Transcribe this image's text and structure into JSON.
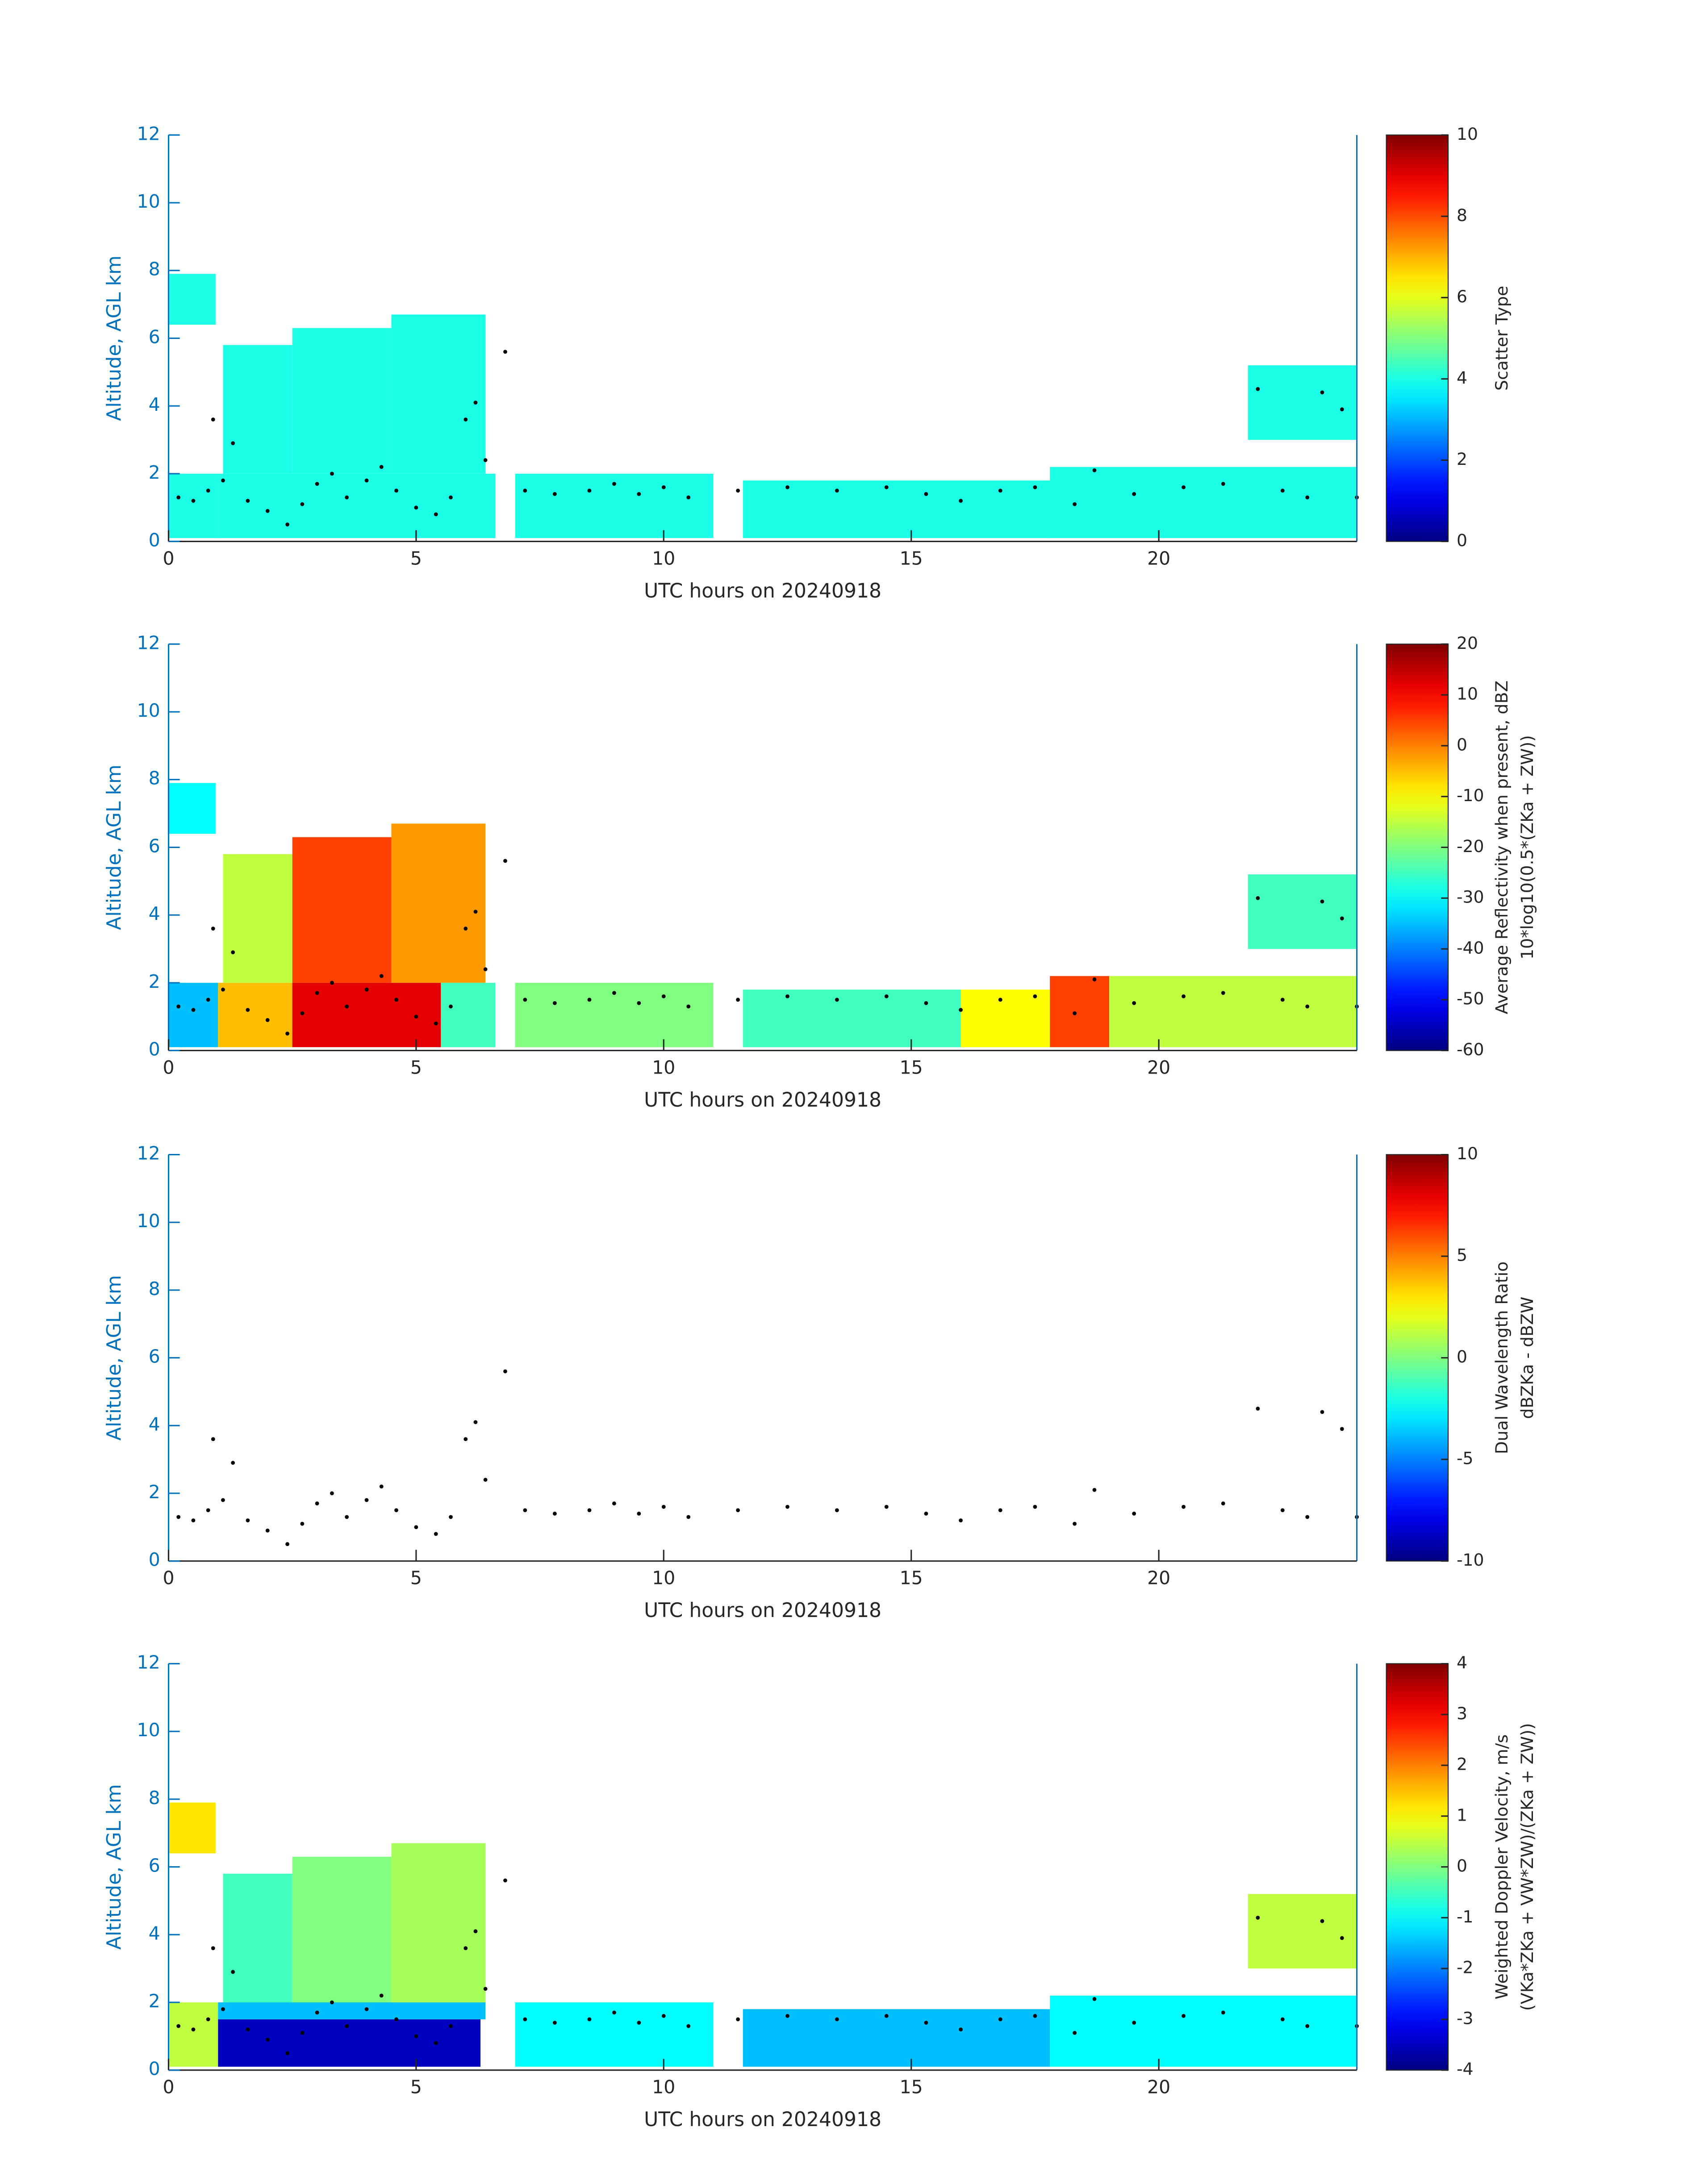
{
  "chart_data": [
    {
      "type": "time-height",
      "xlabel": "UTC hours on 20240918",
      "ylabel": "Altitude, AGL km",
      "xlim": [
        0,
        24
      ],
      "xticks": [
        0,
        5,
        10,
        15,
        20
      ],
      "ylim": [
        0,
        12
      ],
      "yticks": [
        0,
        2,
        4,
        6,
        8,
        10,
        12
      ],
      "axis_color": "#0072bd",
      "colormap": "jet",
      "colorbar": {
        "label": [
          "Scatter Type"
        ],
        "lim": [
          0,
          10
        ],
        "ticks": [
          0,
          2,
          4,
          6,
          8,
          10
        ]
      },
      "cells": [
        {
          "x": [
            0,
            1
          ],
          "y": [
            0.1,
            2.0
          ],
          "value": 4
        },
        {
          "x": [
            0,
            0.95
          ],
          "y": [
            6.4,
            7.9
          ],
          "value": 4
        },
        {
          "x": [
            1,
            6.6
          ],
          "y": [
            0.1,
            2.0
          ],
          "value": 4
        },
        {
          "x": [
            1.1,
            2.5
          ],
          "y": [
            2.0,
            5.8
          ],
          "value": 4
        },
        {
          "x": [
            2.5,
            4.5
          ],
          "y": [
            2.0,
            6.3
          ],
          "value": 4
        },
        {
          "x": [
            4.5,
            6.4
          ],
          "y": [
            2.0,
            6.7
          ],
          "value": 4
        },
        {
          "x": [
            7,
            11
          ],
          "y": [
            0.1,
            2.0
          ],
          "value": 4
        },
        {
          "x": [
            11.6,
            17.8
          ],
          "y": [
            0.1,
            1.8
          ],
          "value": 4
        },
        {
          "x": [
            17.8,
            24
          ],
          "y": [
            0.1,
            2.2
          ],
          "value": 4
        },
        {
          "x": [
            21.8,
            24
          ],
          "y": [
            3.0,
            5.2
          ],
          "value": 4
        }
      ],
      "points": {
        "color": "#000000",
        "x": [
          0.2,
          0.5,
          0.8,
          0.9,
          1.1,
          1.3,
          1.6,
          2.0,
          2.4,
          2.7,
          3.0,
          3.3,
          3.6,
          4.0,
          4.3,
          4.6,
          5.0,
          5.4,
          5.7,
          6.0,
          6.2,
          6.4,
          6.8,
          7.2,
          7.8,
          8.5,
          9.0,
          9.5,
          10.0,
          10.5,
          11.5,
          12.5,
          13.5,
          14.5,
          15.3,
          16.0,
          16.8,
          17.5,
          18.3,
          18.7,
          19.5,
          20.5,
          21.3,
          22.0,
          22.5,
          23.0,
          23.3,
          23.7,
          24.0
        ],
        "y": [
          1.3,
          1.2,
          1.5,
          3.6,
          1.8,
          2.9,
          1.2,
          0.9,
          0.5,
          1.1,
          1.7,
          2.0,
          1.3,
          1.8,
          2.2,
          1.5,
          1.0,
          0.8,
          1.3,
          3.6,
          4.1,
          2.4,
          5.6,
          1.5,
          1.4,
          1.5,
          1.7,
          1.4,
          1.6,
          1.3,
          1.5,
          1.6,
          1.5,
          1.6,
          1.4,
          1.2,
          1.5,
          1.6,
          1.1,
          2.1,
          1.4,
          1.6,
          1.7,
          4.5,
          1.5,
          1.3,
          4.4,
          3.9,
          1.3
        ]
      }
    },
    {
      "type": "time-height",
      "xlabel": "UTC hours on 20240918",
      "ylabel": "Altitude, AGL km",
      "xlim": [
        0,
        24
      ],
      "xticks": [
        0,
        5,
        10,
        15,
        20
      ],
      "ylim": [
        0,
        12
      ],
      "yticks": [
        0,
        2,
        4,
        6,
        8,
        10,
        12
      ],
      "axis_color": "#0072bd",
      "colormap": "jet",
      "colorbar": {
        "label": [
          "Average Reflectivity when present, dBZ",
          "10*log10(0.5*(ZKa + ZW))"
        ],
        "lim": [
          -60,
          20
        ],
        "ticks": [
          -60,
          -50,
          -40,
          -30,
          -20,
          -10,
          0,
          10,
          20
        ]
      },
      "cells": [
        {
          "x": [
            0,
            1
          ],
          "y": [
            0.1,
            2.0
          ],
          "value": -35
        },
        {
          "x": [
            0,
            0.95
          ],
          "y": [
            6.4,
            7.9
          ],
          "value": -30
        },
        {
          "x": [
            1,
            2.5
          ],
          "y": [
            0.1,
            2.0
          ],
          "value": -5
        },
        {
          "x": [
            1.1,
            2.5
          ],
          "y": [
            2.0,
            5.8
          ],
          "value": -15
        },
        {
          "x": [
            2.5,
            5.5
          ],
          "y": [
            0.1,
            2.0
          ],
          "value": 12
        },
        {
          "x": [
            2.5,
            4.5
          ],
          "y": [
            2.0,
            6.3
          ],
          "value": 5
        },
        {
          "x": [
            4.5,
            6.4
          ],
          "y": [
            2.0,
            6.7
          ],
          "value": -2
        },
        {
          "x": [
            5.5,
            6.6
          ],
          "y": [
            0.1,
            2.0
          ],
          "value": -25
        },
        {
          "x": [
            7,
            11
          ],
          "y": [
            0.1,
            2.0
          ],
          "value": -20
        },
        {
          "x": [
            11.6,
            16
          ],
          "y": [
            0.1,
            1.8
          ],
          "value": -25
        },
        {
          "x": [
            16,
            17.8
          ],
          "y": [
            0.1,
            1.8
          ],
          "value": -10
        },
        {
          "x": [
            17.8,
            19
          ],
          "y": [
            0.1,
            2.2
          ],
          "value": 5
        },
        {
          "x": [
            19,
            24
          ],
          "y": [
            0.1,
            2.2
          ],
          "value": -15
        },
        {
          "x": [
            21.8,
            24
          ],
          "y": [
            3.0,
            5.2
          ],
          "value": -25
        }
      ],
      "points": {
        "color": "#000000",
        "x": [
          0.2,
          0.5,
          0.8,
          0.9,
          1.1,
          1.3,
          1.6,
          2.0,
          2.4,
          2.7,
          3.0,
          3.3,
          3.6,
          4.0,
          4.3,
          4.6,
          5.0,
          5.4,
          5.7,
          6.0,
          6.2,
          6.4,
          6.8,
          7.2,
          7.8,
          8.5,
          9.0,
          9.5,
          10.0,
          10.5,
          11.5,
          12.5,
          13.5,
          14.5,
          15.3,
          16.0,
          16.8,
          17.5,
          18.3,
          18.7,
          19.5,
          20.5,
          21.3,
          22.0,
          22.5,
          23.0,
          23.3,
          23.7,
          24.0
        ],
        "y": [
          1.3,
          1.2,
          1.5,
          3.6,
          1.8,
          2.9,
          1.2,
          0.9,
          0.5,
          1.1,
          1.7,
          2.0,
          1.3,
          1.8,
          2.2,
          1.5,
          1.0,
          0.8,
          1.3,
          3.6,
          4.1,
          2.4,
          5.6,
          1.5,
          1.4,
          1.5,
          1.7,
          1.4,
          1.6,
          1.3,
          1.5,
          1.6,
          1.5,
          1.6,
          1.4,
          1.2,
          1.5,
          1.6,
          1.1,
          2.1,
          1.4,
          1.6,
          1.7,
          4.5,
          1.5,
          1.3,
          4.4,
          3.9,
          1.3
        ]
      }
    },
    {
      "type": "time-height",
      "xlabel": "UTC hours on 20240918",
      "ylabel": "Altitude, AGL km",
      "xlim": [
        0,
        24
      ],
      "xticks": [
        0,
        5,
        10,
        15,
        20
      ],
      "ylim": [
        0,
        12
      ],
      "yticks": [
        0,
        2,
        4,
        6,
        8,
        10,
        12
      ],
      "axis_color": "#0072bd",
      "colormap": "jet",
      "colorbar": {
        "label": [
          "Dual Wavelength Ratio",
          "dBZKa - dBZW"
        ],
        "lim": [
          -10,
          10
        ],
        "ticks": [
          -10,
          -5,
          0,
          5,
          10
        ]
      },
      "points": {
        "color": "#000000",
        "x": [
          0.2,
          0.5,
          0.8,
          0.9,
          1.1,
          1.3,
          1.6,
          2.0,
          2.4,
          2.7,
          3.0,
          3.3,
          3.6,
          4.0,
          4.3,
          4.6,
          5.0,
          5.4,
          5.7,
          6.0,
          6.2,
          6.4,
          6.8,
          7.2,
          7.8,
          8.5,
          9.0,
          9.5,
          10.0,
          10.5,
          11.5,
          12.5,
          13.5,
          14.5,
          15.3,
          16.0,
          16.8,
          17.5,
          18.3,
          18.7,
          19.5,
          20.5,
          21.3,
          22.0,
          22.5,
          23.0,
          23.3,
          23.7,
          24.0
        ],
        "y": [
          1.3,
          1.2,
          1.5,
          3.6,
          1.8,
          2.9,
          1.2,
          0.9,
          0.5,
          1.1,
          1.7,
          2.0,
          1.3,
          1.8,
          2.2,
          1.5,
          1.0,
          0.8,
          1.3,
          3.6,
          4.1,
          2.4,
          5.6,
          1.5,
          1.4,
          1.5,
          1.7,
          1.4,
          1.6,
          1.3,
          1.5,
          1.6,
          1.5,
          1.6,
          1.4,
          1.2,
          1.5,
          1.6,
          1.1,
          2.1,
          1.4,
          1.6,
          1.7,
          4.5,
          1.5,
          1.3,
          4.4,
          3.9,
          1.3
        ]
      }
    },
    {
      "type": "time-height",
      "xlabel": "UTC hours on 20240918",
      "ylabel": "Altitude, AGL km",
      "xlim": [
        0,
        24
      ],
      "xticks": [
        0,
        5,
        10,
        15,
        20
      ],
      "ylim": [
        0,
        12
      ],
      "yticks": [
        0,
        2,
        4,
        6,
        8,
        10,
        12
      ],
      "axis_color": "#0072bd",
      "colormap": "jet",
      "colorbar": {
        "label": [
          "Weighted Doppler Velocity, m/s",
          "(VKa*ZKa + VW*ZW)/(ZKa + ZW))"
        ],
        "lim": [
          -4,
          4
        ],
        "ticks": [
          -4,
          -3,
          -2,
          -1,
          0,
          1,
          2,
          3,
          4
        ]
      },
      "cells": [
        {
          "x": [
            0,
            1
          ],
          "y": [
            0.1,
            2.0
          ],
          "value": 0.5
        },
        {
          "x": [
            0,
            0.95
          ],
          "y": [
            6.4,
            7.9
          ],
          "value": 1.2
        },
        {
          "x": [
            1,
            6.3
          ],
          "y": [
            0.1,
            1.5
          ],
          "value": -3.5
        },
        {
          "x": [
            1,
            6.4
          ],
          "y": [
            1.5,
            2.0
          ],
          "value": -1.5
        },
        {
          "x": [
            1.1,
            2.5
          ],
          "y": [
            2.0,
            5.8
          ],
          "value": -0.5
        },
        {
          "x": [
            2.5,
            4.5
          ],
          "y": [
            2.0,
            6.3
          ],
          "value": 0
        },
        {
          "x": [
            4.5,
            6.4
          ],
          "y": [
            2.0,
            6.7
          ],
          "value": 0.3
        },
        {
          "x": [
            7,
            11
          ],
          "y": [
            0.1,
            2.0
          ],
          "value": -1
        },
        {
          "x": [
            11.6,
            17.8
          ],
          "y": [
            0.1,
            1.8
          ],
          "value": -1.5
        },
        {
          "x": [
            17.8,
            24
          ],
          "y": [
            0.1,
            2.2
          ],
          "value": -1
        },
        {
          "x": [
            21.8,
            24
          ],
          "y": [
            3.0,
            5.2
          ],
          "value": 0.5
        }
      ],
      "points": {
        "color": "#000000",
        "x": [
          0.2,
          0.5,
          0.8,
          0.9,
          1.1,
          1.3,
          1.6,
          2.0,
          2.4,
          2.7,
          3.0,
          3.3,
          3.6,
          4.0,
          4.3,
          4.6,
          5.0,
          5.4,
          5.7,
          6.0,
          6.2,
          6.4,
          6.8,
          7.2,
          7.8,
          8.5,
          9.0,
          9.5,
          10.0,
          10.5,
          11.5,
          12.5,
          13.5,
          14.5,
          15.3,
          16.0,
          16.8,
          17.5,
          18.3,
          18.7,
          19.5,
          20.5,
          21.3,
          22.0,
          22.5,
          23.0,
          23.3,
          23.7,
          24.0
        ],
        "y": [
          1.3,
          1.2,
          1.5,
          3.6,
          1.8,
          2.9,
          1.2,
          0.9,
          0.5,
          1.1,
          1.7,
          2.0,
          1.3,
          1.8,
          2.2,
          1.5,
          1.0,
          0.8,
          1.3,
          3.6,
          4.1,
          2.4,
          5.6,
          1.5,
          1.4,
          1.5,
          1.7,
          1.4,
          1.6,
          1.3,
          1.5,
          1.6,
          1.5,
          1.6,
          1.4,
          1.2,
          1.5,
          1.6,
          1.1,
          2.1,
          1.4,
          1.6,
          1.7,
          4.5,
          1.5,
          1.3,
          4.4,
          3.9,
          1.3
        ]
      }
    }
  ]
}
